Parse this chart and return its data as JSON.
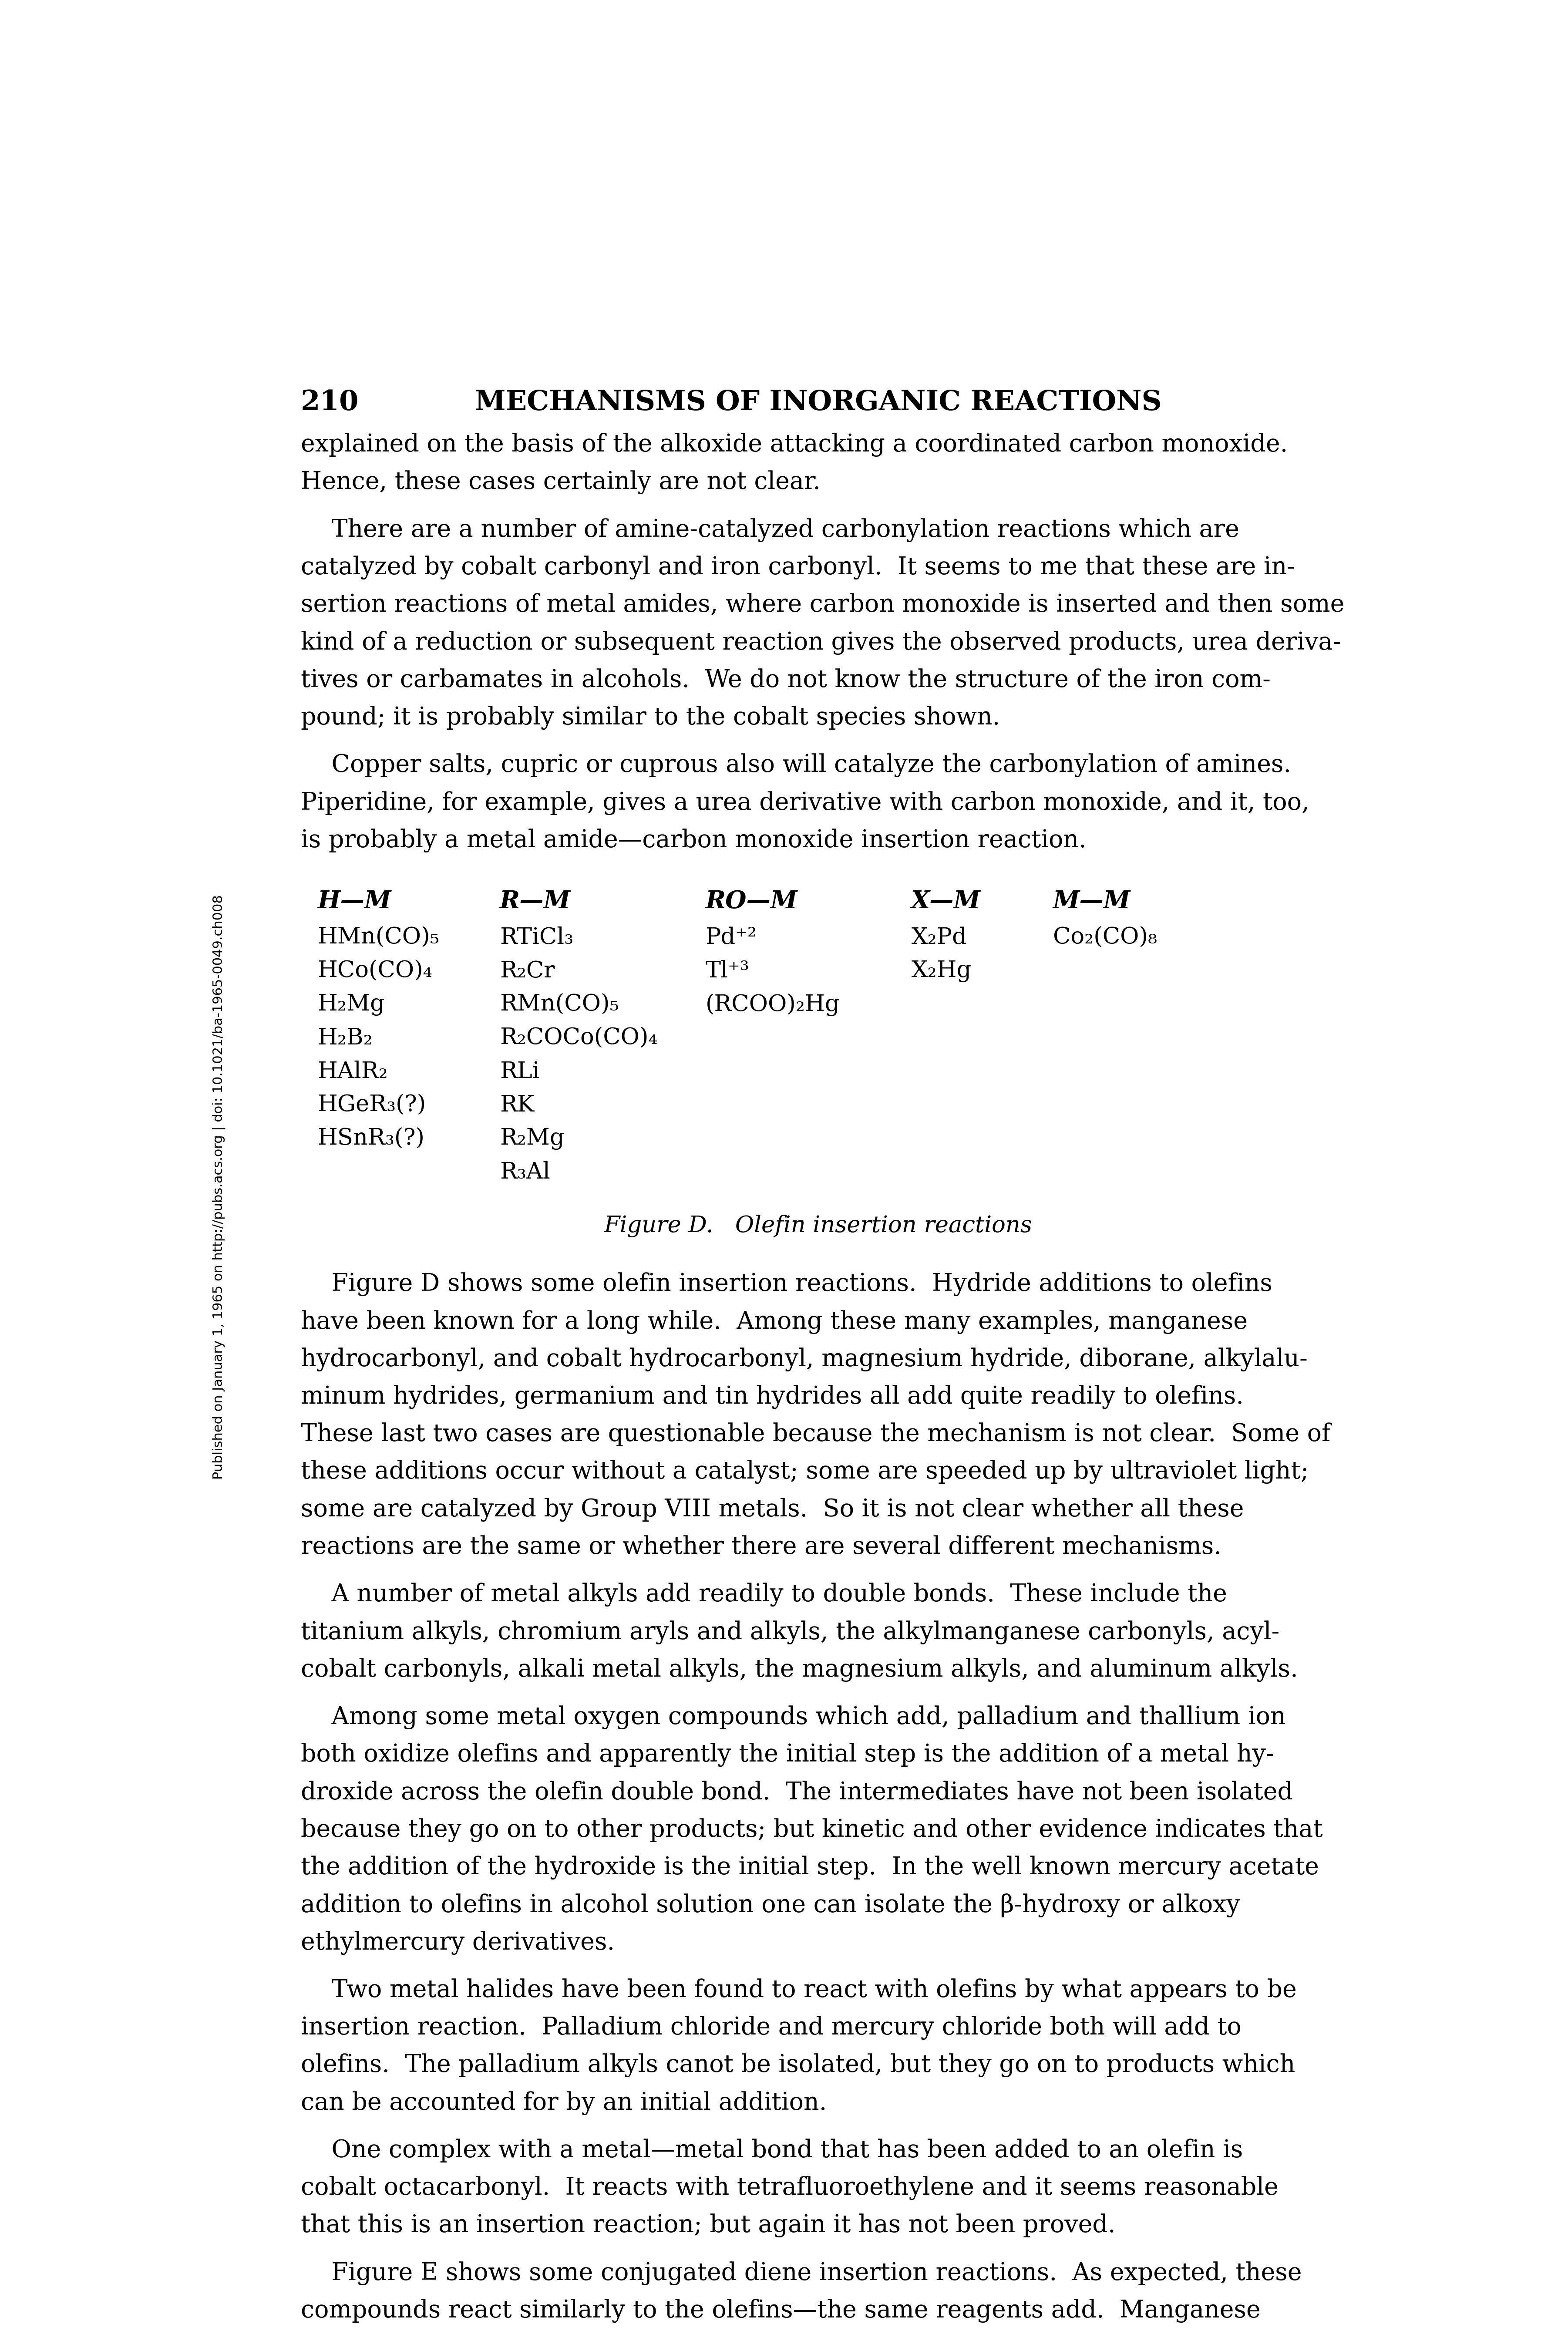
{
  "page_number": "210",
  "header": "MECHANISMS OF INORGANIC REACTIONS",
  "background_color": "#ffffff",
  "text_color": "#000000",
  "sidebar_text": "Published on January 1, 1965 on http://pubs.acs.org | doi: 10.1021/ba-1965-0049.ch008",
  "para1_lines": [
    "explained on the basis of the alkoxide attacking a coordinated carbon monoxide.",
    "Hence, these cases certainly are not clear."
  ],
  "para2_lines": [
    "    There are a number of amine-catalyzed carbonylation reactions which are",
    "catalyzed by cobalt carbonyl and iron carbonyl.  It seems to me that these are in-",
    "sertion reactions of metal amides, where carbon monoxide is inserted and then some",
    "kind of a reduction or subsequent reaction gives the observed products, urea deriva-",
    "tives or carbamates in alcohols.  We do not know the structure of the iron com-",
    "pound; it is probably similar to the cobalt species shown."
  ],
  "para3_lines": [
    "    Copper salts, cupric or cuprous also will catalyze the carbonylation of amines.",
    "Piperidine, for example, gives a urea derivative with carbon monoxide, and it, too,",
    "is probably a metal amide—carbon monoxide insertion reaction."
  ],
  "table_headers": [
    "H—M",
    "R—M",
    "RO—M",
    "X—M",
    "M—M"
  ],
  "col1": [
    "HMn(CO)₅",
    "HCo(CO)₄",
    "H₂Mg",
    "H₂B₂",
    "HAlR₂",
    "HGeR₃(?)",
    "HSnR₃(?)"
  ],
  "col2": [
    "RTiCl₃",
    "R₂Cr",
    "RMn(CO)₅",
    "R₂COCo(CO)₄",
    "RLi",
    "RK",
    "R₂Mg",
    "R₃Al"
  ],
  "col3": [
    "Pd⁺²",
    "Tl⁺³",
    "(RCOO)₂Hg"
  ],
  "col4": [
    "X₂Pd",
    "X₂Hg"
  ],
  "col5": [
    "Co₂(CO)₈"
  ],
  "figure_caption": "Figure D.   Olefin insertion reactions",
  "bp1_lines": [
    "    Figure D shows some olefin insertion reactions.  Hydride additions to olefins",
    "have been known for a long while.  Among these many examples, manganese",
    "hydrocarbonyl, and cobalt hydrocarbonyl, magnesium hydride, diborane, alkylalu-",
    "minum hydrides, germanium and tin hydrides all add quite readily to olefins.",
    "These last two cases are questionable because the mechanism is not clear.  Some of",
    "these additions occur without a catalyst; some are speeded up by ultraviolet light;",
    "some are catalyzed by Group VIII metals.  So it is not clear whether all these",
    "reactions are the same or whether there are several different mechanisms."
  ],
  "bp2_lines": [
    "    A number of metal alkyls add readily to double bonds.  These include the",
    "titanium alkyls, chromium aryls and alkyls, the alkylmanganese carbonyls, acyl-",
    "cobalt carbonyls, alkali metal alkyls, the magnesium alkyls, and aluminum alkyls."
  ],
  "bp3_lines": [
    "    Among some metal oxygen compounds which add, palladium and thallium ion",
    "both oxidize olefins and apparently the initial step is the addition of a metal hy-",
    "droxide across the olefin double bond.  The intermediates have not been isolated",
    "because they go on to other products; but kinetic and other evidence indicates that",
    "the addition of the hydroxide is the initial step.  In the well known mercury acetate",
    "addition to olefins in alcohol solution one can isolate the β-hydroxy or alkoxy",
    "ethylmercury derivatives."
  ],
  "bp4_lines": [
    "    Two metal halides have been found to react with olefins by what appears to be",
    "insertion reaction.  Palladium chloride and mercury chloride both will add to",
    "olefins.  The palladium alkyls canot be isolated, but they go on to products which",
    "can be accounted for by an initial addition."
  ],
  "bp5_lines": [
    "    One complex with a metal—metal bond that has been added to an olefin is",
    "cobalt octacarbonyl.  It reacts with tetrafluoroethylene and it seems reasonable",
    "that this is an insertion reaction; but again it has not been proved."
  ],
  "bp6_lines": [
    "    Figure E shows some conjugated diene insertion reactions.  As expected, these",
    "compounds react similarly to the olefins—the same reagents add.  Manganese"
  ]
}
